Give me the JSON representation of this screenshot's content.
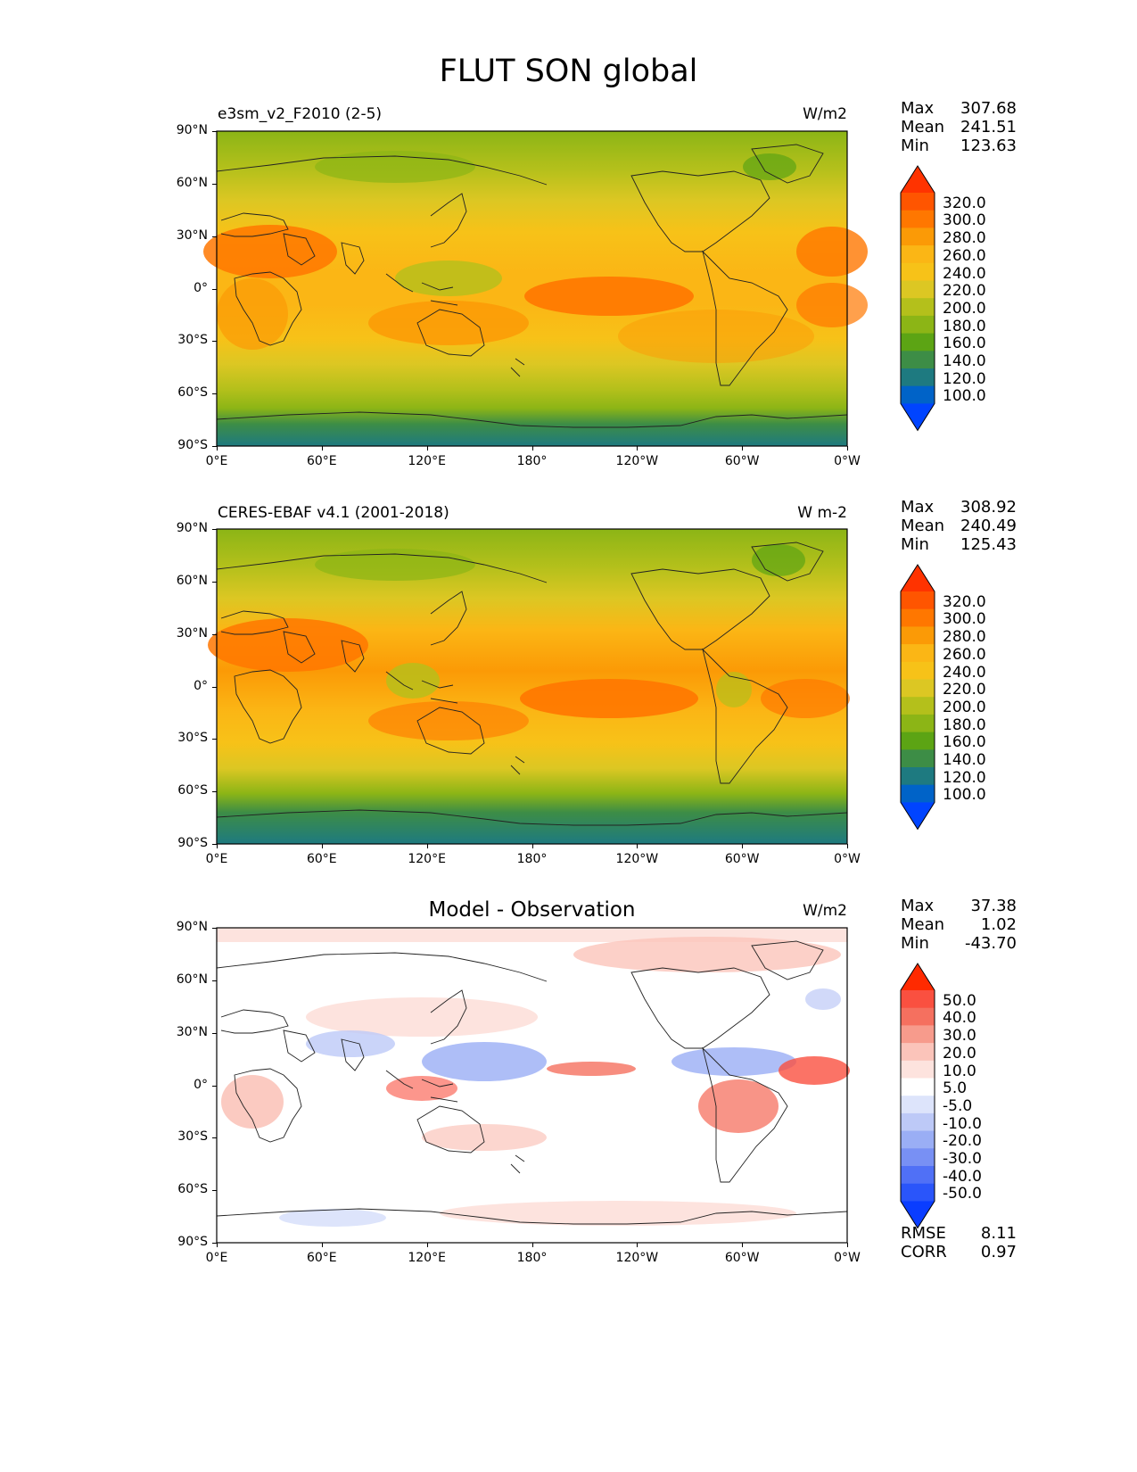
{
  "title": "FLUT SON global",
  "lat_labels": [
    "90°N",
    "60°N",
    "30°N",
    "0°",
    "30°S",
    "60°S",
    "90°S"
  ],
  "lon_labels": [
    "0°E",
    "60°E",
    "120°E",
    "180°",
    "120°W",
    "60°W",
    "0°W"
  ],
  "panels": [
    {
      "title": "e3sm_v2_F2010 (2-5)",
      "center_title": "",
      "units": "W/m2",
      "stats": [
        {
          "label": "Max",
          "value": "307.68"
        },
        {
          "label": "Mean",
          "value": "241.51"
        },
        {
          "label": "Min",
          "value": "123.63"
        }
      ],
      "colorbar": {
        "labels": [
          "320.0",
          "300.0",
          "280.0",
          "260.0",
          "240.0",
          "220.0",
          "200.0",
          "180.0",
          "160.0",
          "140.0",
          "120.0",
          "100.0"
        ],
        "colors": [
          "#ff3300",
          "#ff5500",
          "#ff7700",
          "#fb9a06",
          "#fbb615",
          "#f7c218",
          "#dcc723",
          "#b4c01b",
          "#8cb516",
          "#5ca414",
          "#3d8d46",
          "#1e7a80",
          "#0063c8",
          "#0044ff"
        ]
      }
    },
    {
      "title": "CERES-EBAF v4.1 (2001-2018)",
      "center_title": "",
      "units": "W m-2",
      "stats": [
        {
          "label": "Max",
          "value": "308.92"
        },
        {
          "label": "Mean",
          "value": "240.49"
        },
        {
          "label": "Min",
          "value": "125.43"
        }
      ],
      "colorbar": {
        "labels": [
          "320.0",
          "300.0",
          "280.0",
          "260.0",
          "240.0",
          "220.0",
          "200.0",
          "180.0",
          "160.0",
          "140.0",
          "120.0",
          "100.0"
        ],
        "colors": [
          "#ff3300",
          "#ff5500",
          "#ff7700",
          "#fb9a06",
          "#fbb615",
          "#f7c218",
          "#dcc723",
          "#b4c01b",
          "#8cb516",
          "#5ca414",
          "#3d8d46",
          "#1e7a80",
          "#0063c8",
          "#0044ff"
        ]
      }
    },
    {
      "title": "",
      "center_title": "Model - Observation",
      "units": "W/m2",
      "stats": [
        {
          "label": "Max",
          "value": "37.38"
        },
        {
          "label": "Mean",
          "value": "1.02"
        },
        {
          "label": "Min",
          "value": "-43.70"
        }
      ],
      "colorbar": {
        "labels": [
          "50.0",
          "40.0",
          "30.0",
          "20.0",
          "10.0",
          "5.0",
          "-5.0",
          "-10.0",
          "-20.0",
          "-30.0",
          "-40.0",
          "-50.0"
        ],
        "colors": [
          "#ff2a00",
          "#fa5040",
          "#f5705f",
          "#f79b8c",
          "#fbc4ba",
          "#fde3de",
          "#ffffff",
          "#dde4fb",
          "#bdc9f7",
          "#9aaef5",
          "#7890f4",
          "#5070f6",
          "#2a55fa",
          "#0a3dff"
        ]
      },
      "extra_stats": [
        {
          "label": "RMSE",
          "value": "8.11"
        },
        {
          "label": "CORR",
          "value": "0.97"
        }
      ]
    }
  ],
  "map_colors": {
    "coast": "#222222",
    "frame": "#000000"
  }
}
